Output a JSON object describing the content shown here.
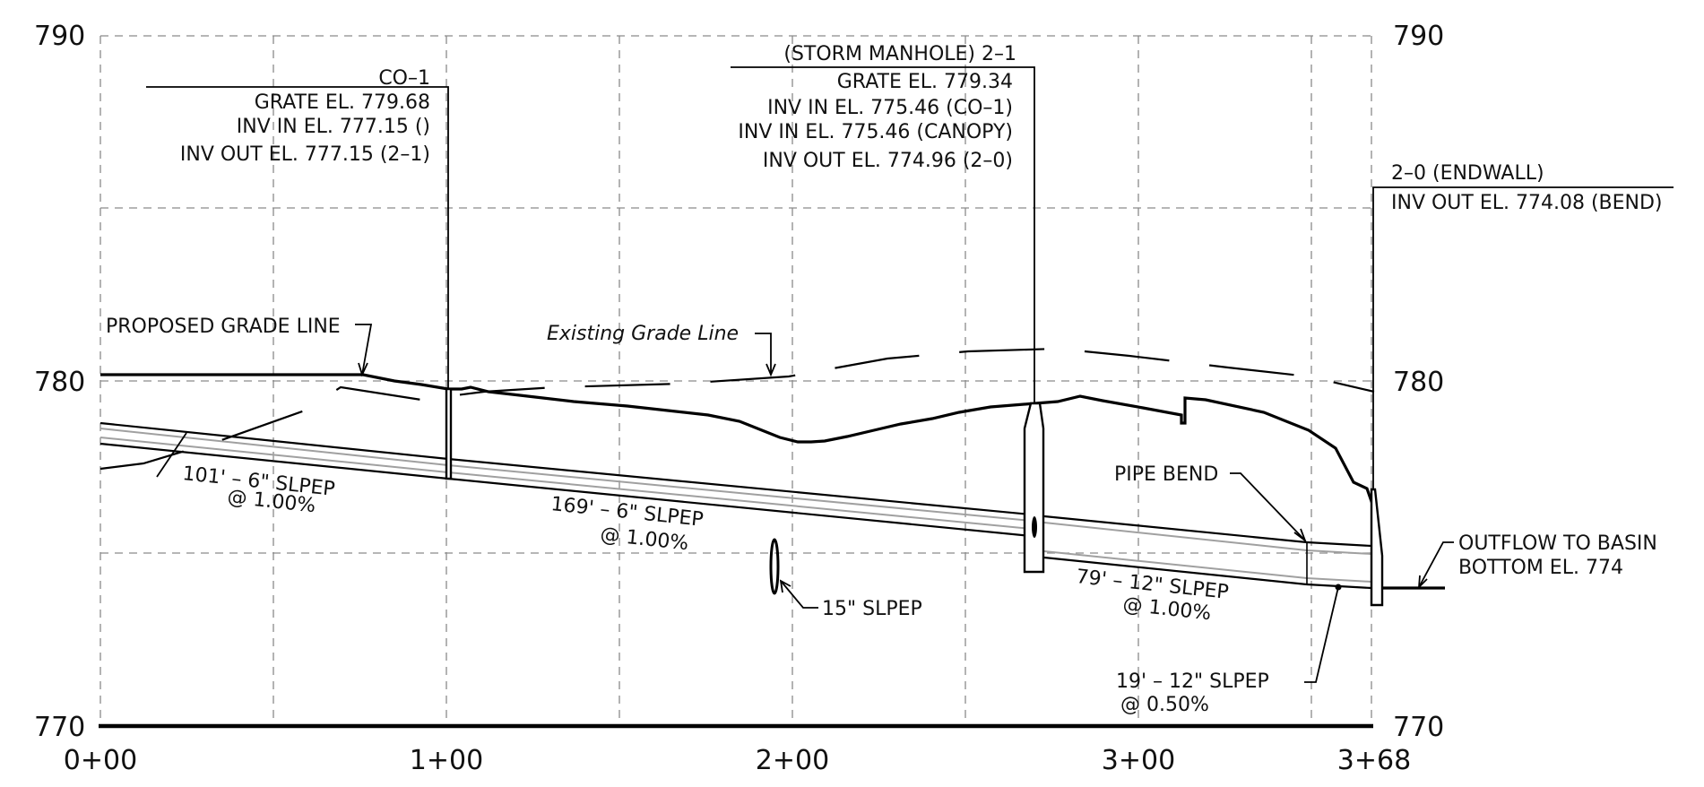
{
  "axes": {
    "left": [
      "790",
      "780",
      "770"
    ],
    "right": [
      "790",
      "780",
      "770"
    ],
    "stations": [
      "0+00",
      "1+00",
      "2+00",
      "3+00",
      "3+68"
    ]
  },
  "grade_labels": {
    "proposed": "PROPOSED GRADE LINE",
    "existing": "Existing Grade Line"
  },
  "structures": {
    "co1": {
      "name": "CO–1",
      "grate": "GRATE EL. 779.68",
      "inv_in": "INV IN EL. 777.15 ()",
      "inv_out": "INV OUT EL. 777.15 (2–1)"
    },
    "mh21": {
      "name": "(STORM MANHOLE) 2–1",
      "grate": "GRATE EL. 779.34",
      "inv_in_1": "INV IN EL. 775.46 (CO–1)",
      "inv_in_2": "INV IN EL. 775.46 (CANOPY)",
      "inv_out": "INV OUT EL. 774.96 (2–0)"
    },
    "endwall": {
      "name": "2–0 (ENDWALL)",
      "inv_out": "INV OUT EL. 774.08 (BEND)"
    }
  },
  "pipes": {
    "p101": {
      "length": "101' – 6\" SLPEP",
      "slope": "@ 1.00%"
    },
    "p169": {
      "length": "169' – 6\" SLPEP",
      "slope": "@ 1.00%"
    },
    "p79": {
      "length": "79' – 12\" SLPEP",
      "slope": "@ 1.00%"
    },
    "p19": {
      "length": "19' – 12\" SLPEP",
      "slope": "@ 0.50%"
    }
  },
  "notes": {
    "pipe_bend": "PIPE BEND",
    "crossing": "15\" SLPEP",
    "outflow_1": "OUTFLOW TO BASIN",
    "outflow_2": "BOTTOM EL. 774"
  }
}
